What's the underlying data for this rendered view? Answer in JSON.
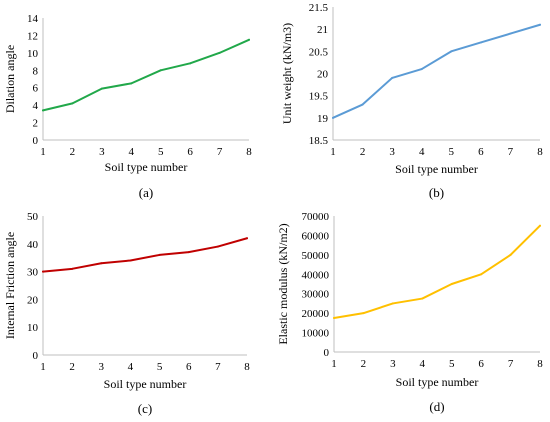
{
  "chart_data": [
    {
      "type": "line",
      "panel_label": "(a)",
      "xlabel": "Soil type number",
      "ylabel": "Dilation angle",
      "x": [
        1,
        2,
        3,
        4,
        5,
        6,
        7,
        8
      ],
      "xlim": [
        1,
        8
      ],
      "ylim": [
        0,
        14
      ],
      "yticks": [
        0,
        2,
        4,
        6,
        8,
        10,
        12,
        14
      ],
      "grid": false,
      "color": "#21a84a",
      "series": [
        {
          "values": [
            3.4,
            4.2,
            5.9,
            6.5,
            8.0,
            8.8,
            10.0,
            11.5
          ]
        }
      ]
    },
    {
      "type": "line",
      "panel_label": "(b)",
      "xlabel": "Soil type number",
      "ylabel": "Unit weight (kN/m3)",
      "x": [
        1,
        2,
        3,
        4,
        5,
        6,
        7,
        8
      ],
      "xlim": [
        1,
        8
      ],
      "ylim": [
        18.5,
        21.5
      ],
      "yticks": [
        18.5,
        19,
        19.5,
        20,
        20.5,
        21,
        21.5
      ],
      "grid": false,
      "color": "#5b9bd5",
      "series": [
        {
          "values": [
            19.0,
            19.3,
            19.9,
            20.1,
            20.5,
            20.7,
            20.9,
            21.1
          ]
        }
      ]
    },
    {
      "type": "line",
      "panel_label": "(c)",
      "xlabel": "Soil type number",
      "ylabel": "Internal Friction angle",
      "x": [
        1,
        2,
        3,
        4,
        5,
        6,
        7,
        8
      ],
      "xlim": [
        1,
        8
      ],
      "ylim": [
        0,
        50
      ],
      "yticks": [
        0,
        10,
        20,
        30,
        40,
        50
      ],
      "grid": false,
      "color": "#c00000",
      "series": [
        {
          "values": [
            30,
            31,
            33,
            34,
            36,
            37,
            39,
            42
          ]
        }
      ]
    },
    {
      "type": "line",
      "panel_label": "(d)",
      "xlabel": "Soil type number",
      "ylabel": "Elastic modulus (kN/m2)",
      "x": [
        1,
        2,
        3,
        4,
        5,
        6,
        7,
        8
      ],
      "xlim": [
        1,
        8
      ],
      "ylim": [
        0,
        70000
      ],
      "yticks": [
        0,
        10000,
        20000,
        30000,
        40000,
        50000,
        60000,
        70000
      ],
      "grid": false,
      "color": "#ffc000",
      "series": [
        {
          "values": [
            17500,
            20000,
            25000,
            27500,
            35000,
            40000,
            50000,
            65000
          ]
        }
      ]
    }
  ]
}
